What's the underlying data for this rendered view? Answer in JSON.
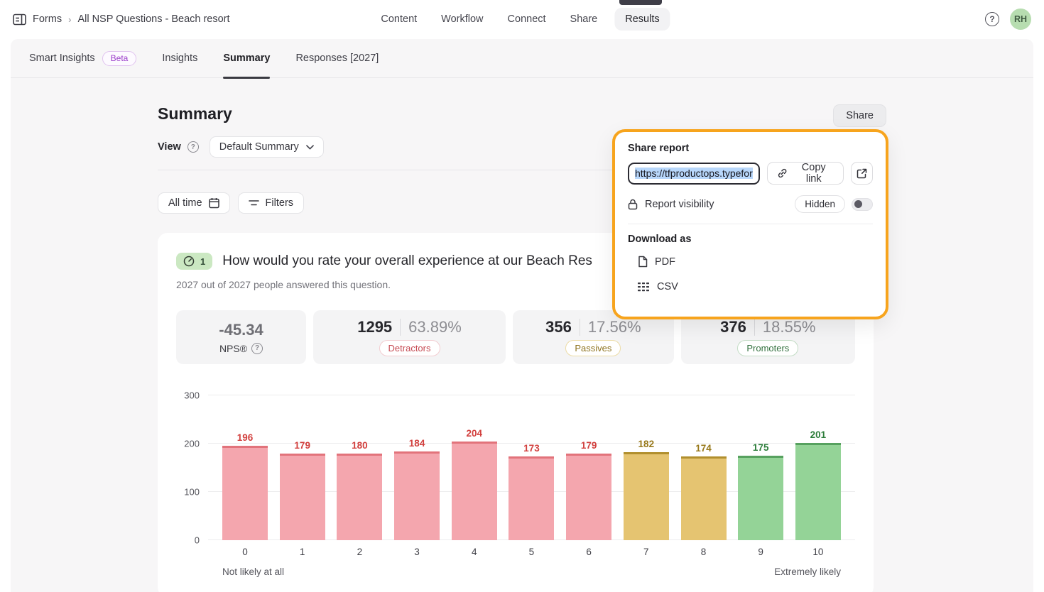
{
  "header": {
    "breadcrumb": {
      "app_label": "Forms",
      "separator": "›",
      "form_name": "All NSP Questions - Beach resort"
    },
    "nav": {
      "items": [
        "Content",
        "Workflow",
        "Connect",
        "Share",
        "Results"
      ],
      "active": "Results"
    },
    "avatar_initials": "RH",
    "help_glyph": "?"
  },
  "tabs": {
    "items": [
      {
        "label": "Smart Insights",
        "badge": "Beta"
      },
      {
        "label": "Insights"
      },
      {
        "label": "Summary",
        "active": true
      },
      {
        "label": "Responses [2027]"
      }
    ]
  },
  "summary": {
    "title": "Summary",
    "share_button": "Share",
    "view_label": "View",
    "view_value": "Default Summary",
    "all_time_button": "All time",
    "filters_button": "Filters"
  },
  "share_popup": {
    "title": "Share report",
    "url_value": "https://tfproductops.typefor",
    "copy_link_button": "Copy link",
    "visibility_label": "Report visibility",
    "visibility_value": "Hidden",
    "toggle_state": "off",
    "download_as_label": "Download as",
    "pdf_label": "PDF",
    "csv_label": "CSV"
  },
  "question": {
    "number": "1",
    "title": "How would you rate your overall experience at our Beach Res",
    "answered_text": "2027 out of 2027 people answered this question."
  },
  "stats": {
    "nps": {
      "value": "-45.34",
      "label": "NPS®",
      "help_glyph": "?"
    },
    "groups": [
      {
        "count": "1295",
        "percent": "63.89%",
        "label": "Detractors",
        "key": "detractor"
      },
      {
        "count": "356",
        "percent": "17.56%",
        "label": "Passives",
        "key": "passive"
      },
      {
        "count": "376",
        "percent": "18.55%",
        "label": "Promoters",
        "key": "promoter"
      }
    ]
  },
  "colors": {
    "accent_orange": "#f7a41d",
    "selection_blue": "#b8d7fb",
    "avatar_bg": "#b7ddb0",
    "avatar_text": "#3f5b41",
    "badge_green_bg": "#cbe8c2",
    "detractor_text": "#c64a52",
    "detractor_border": "#f3cdd1",
    "passive_text": "#8f7420",
    "passive_border": "#ecdca6",
    "promoter_text": "#33713f",
    "promoter_border": "#c4ddc6"
  },
  "chart_data": {
    "type": "bar",
    "title": "NPS rating distribution",
    "categories": [
      0,
      1,
      2,
      3,
      4,
      5,
      6,
      7,
      8,
      9,
      10
    ],
    "values": [
      196,
      179,
      180,
      184,
      204,
      173,
      179,
      182,
      174,
      175,
      201
    ],
    "segment_of": [
      "detractor",
      "detractor",
      "detractor",
      "detractor",
      "detractor",
      "detractor",
      "detractor",
      "passive",
      "passive",
      "promoter",
      "promoter"
    ],
    "yticks": [
      0,
      100,
      200,
      300
    ],
    "ylim": [
      0,
      300
    ],
    "grid": true,
    "legend": false,
    "xlabel_left_caption": "Not likely at all",
    "xlabel_right_caption": "Extremely likely",
    "colors": {
      "detractor": {
        "fill": "#f4a6ae",
        "edge": "#e2737b",
        "label": "#d2403e"
      },
      "passive": {
        "fill": "#e5c471",
        "edge": "#b18f2e",
        "label": "#97781a"
      },
      "promoter": {
        "fill": "#94d397",
        "edge": "#57a15f",
        "label": "#2c7d3a"
      }
    }
  }
}
